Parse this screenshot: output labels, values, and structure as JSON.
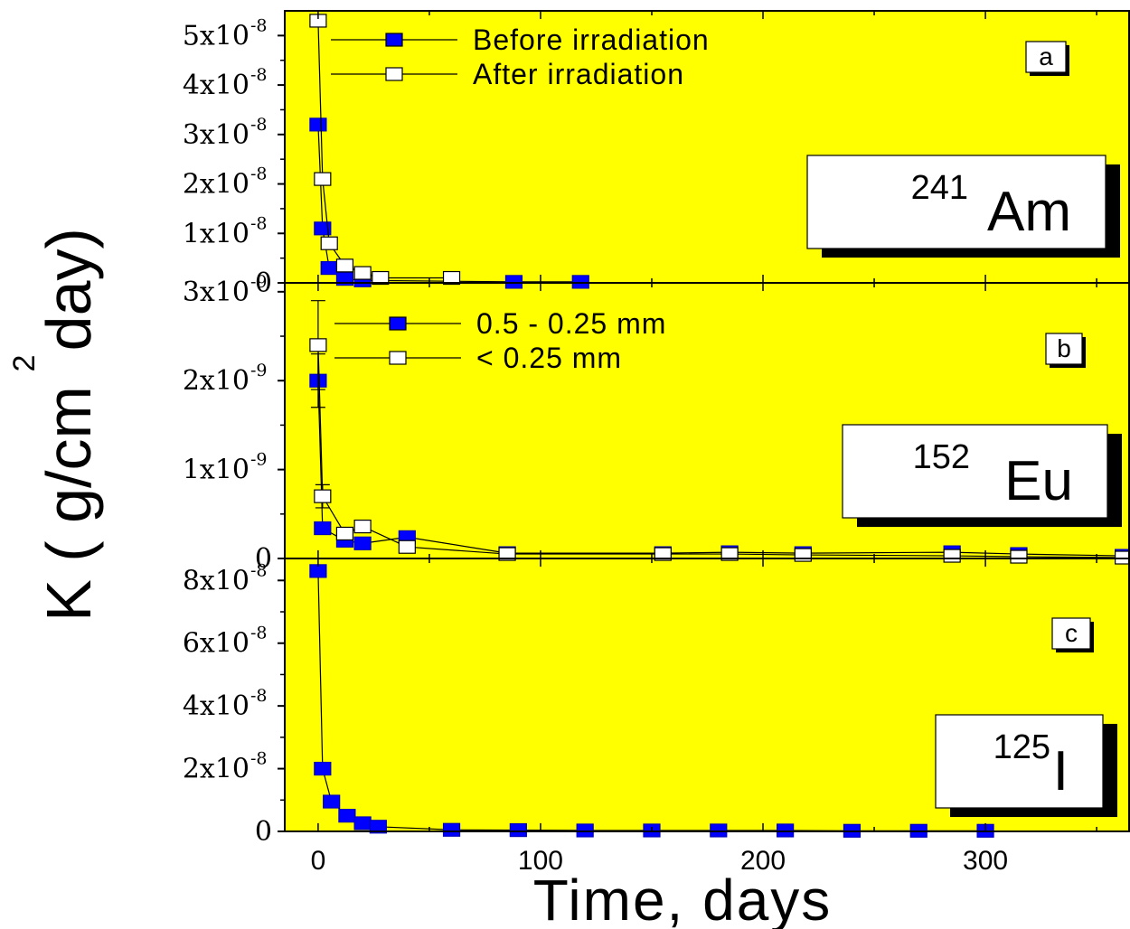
{
  "chart_data": {
    "type": "scatter",
    "xlabel": "Time, days",
    "ylabel": "K ( g/cm  day)",
    "ylabel_superscript": "2",
    "xlim": [
      -15,
      365
    ],
    "xticks": [
      0,
      100,
      200,
      300
    ],
    "panels": [
      {
        "label": "a",
        "isotope_mass": "241",
        "isotope_symbol": "Am",
        "ylim": [
          0,
          5.5e-08
        ],
        "yticks": [
          {
            "value": 0,
            "mantissa": "0",
            "exponent": ""
          },
          {
            "value": 1e-08,
            "mantissa": "1x10",
            "exponent": "-8"
          },
          {
            "value": 2e-08,
            "mantissa": "2x10",
            "exponent": "-8"
          },
          {
            "value": 3e-08,
            "mantissa": "3x10",
            "exponent": "-8"
          },
          {
            "value": 4e-08,
            "mantissa": "4x10",
            "exponent": "-8"
          },
          {
            "value": 5e-08,
            "mantissa": "5x10",
            "exponent": "-8"
          }
        ],
        "series": [
          {
            "name": "Before irradiation",
            "marker": "filled",
            "color": "#0000ff",
            "x": [
              0,
              2,
              5,
              12,
              20,
              88,
              118
            ],
            "y": [
              3.2e-08,
              1.1e-08,
              3e-09,
              8e-10,
              5e-10,
              2e-10,
              2e-10
            ]
          },
          {
            "name": "After irradiation",
            "marker": "open",
            "color": "#ffffff",
            "x": [
              0,
              2,
              5,
              12,
              20,
              28,
              60
            ],
            "y": [
              5.3e-08,
              2.1e-08,
              8e-09,
              3.5e-09,
              2e-09,
              1e-09,
              1e-09
            ]
          }
        ]
      },
      {
        "label": "b",
        "isotope_mass": "152",
        "isotope_symbol": "Eu",
        "ylim": [
          0,
          3.1e-09
        ],
        "yticks": [
          {
            "value": 0,
            "mantissa": "0",
            "exponent": ""
          },
          {
            "value": 1e-09,
            "mantissa": "1x10",
            "exponent": "-9"
          },
          {
            "value": 2e-09,
            "mantissa": "2x10",
            "exponent": "-9"
          },
          {
            "value": 3e-09,
            "mantissa": "3x10",
            "exponent": "-9"
          }
        ],
        "series": [
          {
            "name": "0.5 - 0.25 mm",
            "marker": "filled",
            "color": "#0000ff",
            "x": [
              0,
              2,
              12,
              20,
              40,
              85,
              155,
              185,
              218,
              285,
              315,
              362
            ],
            "y": [
              2e-09,
              3.4e-10,
              2e-10,
              1.7e-10,
              2.4e-10,
              6e-11,
              6e-11,
              7e-11,
              6e-11,
              7e-11,
              5e-11,
              3e-11
            ],
            "yerr": [
              3e-10,
              0,
              0,
              0,
              0,
              0,
              0,
              0,
              0,
              0,
              0,
              0
            ]
          },
          {
            "name": "< 0.25 mm",
            "marker": "open",
            "color": "#ffffff",
            "x": [
              0,
              2,
              12,
              20,
              40,
              85,
              155,
              185,
              218,
              285,
              315,
              362
            ],
            "y": [
              2.4e-09,
              7e-10,
              2.8e-10,
              3.6e-10,
              1.3e-10,
              5e-11,
              5e-11,
              5e-11,
              4e-11,
              3e-11,
              2e-11,
              1e-11
            ],
            "yerr": [
              5e-10,
              1.3e-10,
              0,
              0,
              0,
              0,
              0,
              0,
              0,
              0,
              0,
              0
            ]
          }
        ]
      },
      {
        "label": "c",
        "isotope_mass": "125",
        "isotope_symbol": "I",
        "ylim": [
          0,
          8.7e-08
        ],
        "yticks": [
          {
            "value": 0,
            "mantissa": "0",
            "exponent": ""
          },
          {
            "value": 2e-08,
            "mantissa": "2x10",
            "exponent": "-8"
          },
          {
            "value": 4e-08,
            "mantissa": "4x10",
            "exponent": "-8"
          },
          {
            "value": 6e-08,
            "mantissa": "6x10",
            "exponent": "-8"
          },
          {
            "value": 8e-08,
            "mantissa": "8x10",
            "exponent": "-8"
          }
        ],
        "series": [
          {
            "name": "",
            "marker": "filled",
            "color": "#0000ff",
            "x": [
              0,
              2,
              6,
              13,
              20,
              27,
              60,
              90,
              120,
              150,
              180,
              210,
              240,
              270,
              300
            ],
            "y": [
              8.3e-08,
              2e-08,
              9.5e-09,
              5e-09,
              2.6e-09,
              1.5e-09,
              5e-10,
              4e-10,
              3e-10,
              3e-10,
              3e-10,
              3e-10,
              2e-10,
              2e-10,
              2e-10
            ]
          }
        ]
      }
    ],
    "plot_background": "#ffff00",
    "grid": false,
    "legend_placement": "top"
  }
}
